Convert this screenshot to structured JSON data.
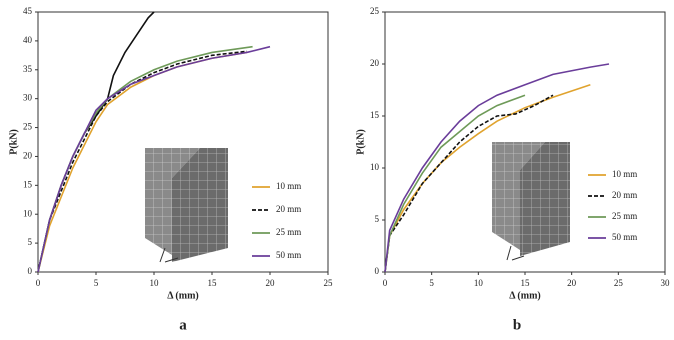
{
  "chart_data": [
    {
      "type": "line",
      "x_label": "Δ (mm)",
      "y_label": "P(kN)",
      "caption": "a",
      "xlim": [
        0,
        25
      ],
      "xticks": [
        0,
        5,
        10,
        15,
        20,
        25
      ],
      "ylim": [
        0,
        45
      ],
      "yticks": [
        0,
        5,
        10,
        15,
        20,
        25,
        30,
        35,
        40,
        45
      ],
      "series": [
        {
          "color": "#111111",
          "style": "solid",
          "x": [
            0,
            1,
            2,
            3,
            4,
            5,
            6,
            6.5,
            7.5,
            8.5,
            9.5,
            10
          ],
          "values": [
            0,
            9,
            15,
            20,
            24,
            27,
            30,
            34,
            38,
            41,
            44,
            45
          ]
        },
        {
          "name": "10 mm",
          "color": "#e0a32e",
          "style": "solid",
          "x": [
            0,
            1,
            2,
            3,
            4,
            5,
            6,
            8,
            10,
            12,
            15,
            18
          ],
          "values": [
            0,
            8,
            13,
            18,
            22,
            26,
            29,
            32,
            34,
            35.5,
            37,
            38
          ]
        },
        {
          "name": "20 mm",
          "color": "#111111",
          "style": "dashed",
          "x": [
            0,
            1,
            2,
            3,
            4,
            5,
            6,
            8,
            10,
            12,
            15,
            18
          ],
          "values": [
            0,
            9,
            14,
            19,
            23,
            27,
            29.5,
            32.5,
            34.5,
            36,
            37.5,
            38.2
          ]
        },
        {
          "name": "25 mm",
          "color": "#6e9a58",
          "style": "solid",
          "x": [
            0,
            1,
            2,
            3,
            4,
            5,
            6,
            8,
            10,
            12,
            15,
            18.5
          ],
          "values": [
            0,
            9,
            15,
            20,
            24,
            27.5,
            30,
            33,
            35,
            36.5,
            38,
            39
          ]
        },
        {
          "name": "50 mm",
          "color": "#6a3d9a",
          "style": "solid",
          "x": [
            0,
            1,
            2,
            3,
            4,
            5,
            6,
            8,
            10,
            12,
            15,
            18,
            20
          ],
          "values": [
            0,
            9,
            15,
            20,
            24,
            28,
            30,
            32.5,
            34,
            35.5,
            37,
            38,
            39
          ]
        }
      ]
    },
    {
      "type": "line",
      "x_label": "Δ (mm)",
      "y_label": "P(kN)",
      "caption": "b",
      "xlim": [
        0,
        30
      ],
      "xticks": [
        0,
        5,
        10,
        15,
        20,
        25,
        30
      ],
      "ylim": [
        0,
        25
      ],
      "yticks": [
        0,
        5,
        10,
        15,
        20,
        25
      ],
      "series": [
        {
          "name": "10 mm",
          "color": "#e0a32e",
          "style": "solid",
          "x": [
            0,
            0.5,
            2,
            4,
            6,
            8,
            10,
            12,
            15,
            18,
            22
          ],
          "values": [
            0,
            3.5,
            6,
            8.5,
            10.5,
            12,
            13.3,
            14.5,
            15.8,
            16.8,
            18
          ]
        },
        {
          "name": "20 mm",
          "color": "#111111",
          "style": "dashed",
          "x": [
            0,
            0.5,
            2,
            4,
            6,
            8,
            10,
            12,
            14,
            16,
            18
          ],
          "values": [
            0,
            3.5,
            5.5,
            8.5,
            10.5,
            12.5,
            14,
            15,
            15.2,
            16,
            17
          ]
        },
        {
          "name": "25 mm",
          "color": "#6e9a58",
          "style": "solid",
          "x": [
            0,
            0.5,
            2,
            4,
            6,
            8,
            10,
            12,
            15
          ],
          "values": [
            0,
            3.5,
            6.5,
            9.5,
            12,
            13.5,
            15,
            16,
            17
          ]
        },
        {
          "name": "50 mm",
          "color": "#6a3d9a",
          "style": "solid",
          "x": [
            0,
            0.5,
            2,
            4,
            6,
            8,
            10,
            12,
            15,
            18,
            22,
            24
          ],
          "values": [
            0,
            4,
            7,
            10,
            12.5,
            14.5,
            16,
            17,
            18,
            19,
            19.7,
            20
          ]
        }
      ]
    }
  ]
}
